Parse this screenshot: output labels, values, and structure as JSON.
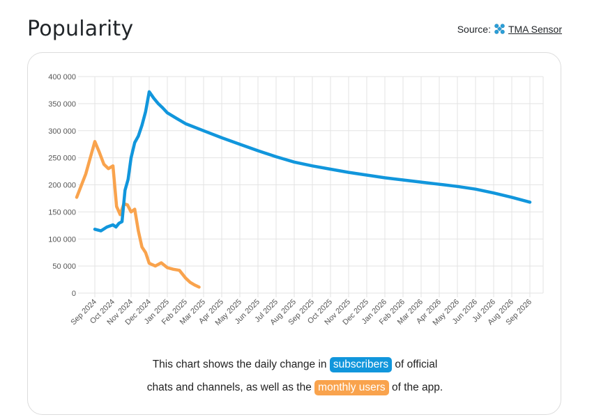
{
  "header": {
    "title": "Popularity",
    "source_label": "Source:",
    "source_link": "TMA Sensor"
  },
  "caption": {
    "line1_prefix": "This chart shows the daily change in",
    "subscribers_badge": "subscribers",
    "line1_suffix": "of official",
    "line2_prefix": "chats and channels, as well as the",
    "monthly_users_badge": "monthly users",
    "line2_suffix": "of the app."
  },
  "colors": {
    "subscribers": "#1196dc",
    "monthly_users": "#f9a34d",
    "grid": "#e3e3e3"
  },
  "icons": {
    "source": "tma-sensor-logo-icon"
  },
  "chart_data": {
    "type": "line",
    "title": "",
    "xlabel": "",
    "ylabel": "",
    "ylim": [
      0,
      400000
    ],
    "yticks": [
      "0",
      "50 000",
      "100 000",
      "150 000",
      "200 000",
      "250 000",
      "300 000",
      "350 000",
      "400 000"
    ],
    "xticks": [
      "Sep 2024",
      "Oct 2024",
      "Nov 2024",
      "Dec 2024",
      "Jan 2025",
      "Feb 2025",
      "Mar 2025",
      "Apr 2025",
      "May 2025",
      "Jun 2025",
      "Jul 2025",
      "Aug 2025",
      "Sep 2025",
      "Oct 2025",
      "Nov 2025",
      "Dec 2025",
      "Jan 2026",
      "Feb 2026",
      "Mar 2026",
      "Apr 2026",
      "May 2026",
      "Jun 2026",
      "Jul 2026",
      "Aug 2026",
      "Sep 2026"
    ],
    "grid": true,
    "legend": "none",
    "series": [
      {
        "key": "subscribers",
        "points": [
          [
            "Sep 2024",
            118000
          ],
          [
            "Sep 2024",
            115000
          ],
          [
            "Sep 2024",
            122000
          ],
          [
            "Oct 2024",
            126000
          ],
          [
            "Oct 2024",
            122000
          ],
          [
            "Oct 2024",
            129000
          ],
          [
            "Oct 2024",
            132000
          ],
          [
            "Oct 2024",
            190000
          ],
          [
            "Oct 2024",
            210000
          ],
          [
            "Nov 2024",
            250000
          ],
          [
            "Nov 2024",
            278000
          ],
          [
            "Nov 2024",
            290000
          ],
          [
            "Nov 2024",
            310000
          ],
          [
            "Nov 2024",
            335000
          ],
          [
            "Dec 2024",
            372000
          ],
          [
            "Dec 2024",
            360000
          ],
          [
            "Dec 2024",
            350000
          ],
          [
            "Dec 2024",
            342000
          ],
          [
            "Jan 2025",
            333000
          ],
          [
            "Jan 2025",
            323000
          ],
          [
            "Feb 2025",
            313000
          ],
          [
            "Mar 2025",
            300000
          ],
          [
            "Apr 2025",
            287000
          ],
          [
            "May 2025",
            275000
          ],
          [
            "Jun 2025",
            263000
          ],
          [
            "Jul 2025",
            252000
          ],
          [
            "Aug 2025",
            242000
          ],
          [
            "Sep 2025",
            235000
          ],
          [
            "Oct 2025",
            229000
          ],
          [
            "Nov 2025",
            223000
          ],
          [
            "Dec 2025",
            218000
          ],
          [
            "Jan 2026",
            213000
          ],
          [
            "Feb 2026",
            209000
          ],
          [
            "Mar 2026",
            205000
          ],
          [
            "Apr 2026",
            201000
          ],
          [
            "May 2026",
            197000
          ],
          [
            "Jun 2026",
            192000
          ],
          [
            "Jul 2026",
            185000
          ],
          [
            "Aug 2026",
            177000
          ],
          [
            "Sep 2026",
            168000
          ]
        ]
      },
      {
        "key": "monthly_users",
        "points": [
          [
            "Aug 2024",
            177000
          ],
          [
            "Aug 2024",
            220000
          ],
          [
            "Sep 2024",
            280000
          ],
          [
            "Sep 2024",
            260000
          ],
          [
            "Sep 2024",
            238000
          ],
          [
            "Sep 2024",
            230000
          ],
          [
            "Oct 2024",
            235000
          ],
          [
            "Oct 2024",
            160000
          ],
          [
            "Oct 2024",
            145000
          ],
          [
            "Oct 2024",
            165000
          ],
          [
            "Oct 2024",
            163000
          ],
          [
            "Nov 2024",
            150000
          ],
          [
            "Nov 2024",
            155000
          ],
          [
            "Nov 2024",
            115000
          ],
          [
            "Nov 2024",
            85000
          ],
          [
            "Nov 2024",
            75000
          ],
          [
            "Dec 2024",
            55000
          ],
          [
            "Dec 2024",
            50000
          ],
          [
            "Dec 2024",
            56000
          ],
          [
            "Jan 2025",
            47000
          ],
          [
            "Jan 2025",
            44000
          ],
          [
            "Jan 2025",
            42000
          ],
          [
            "Feb 2025",
            28000
          ],
          [
            "Feb 2025",
            20000
          ],
          [
            "Feb 2025",
            15000
          ],
          [
            "Feb 2025",
            11000
          ]
        ]
      }
    ]
  }
}
